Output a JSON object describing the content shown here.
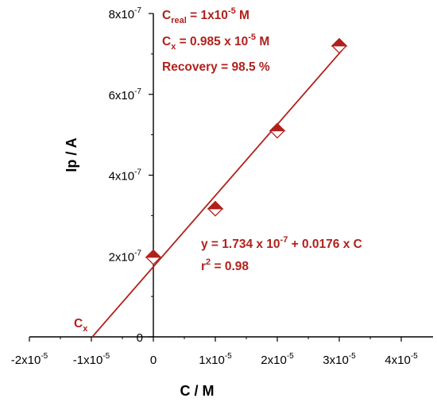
{
  "chart_data": {
    "type": "scatter",
    "xlabel": "C / M",
    "ylabel": "Ip / A",
    "xlim": [
      -2e-05,
      4e-05
    ],
    "ylim": [
      0,
      8e-07
    ],
    "x_ticks": [
      {
        "value": -2e-05,
        "mantissa": "-2x10",
        "exp": "-5"
      },
      {
        "value": -1e-05,
        "mantissa": "-1x10",
        "exp": "-5"
      },
      {
        "value": 0,
        "mantissa": "0",
        "exp": ""
      },
      {
        "value": 1e-05,
        "mantissa": "1x10",
        "exp": "-5"
      },
      {
        "value": 2e-05,
        "mantissa": "2x10",
        "exp": "-5"
      },
      {
        "value": 3e-05,
        "mantissa": "3x10",
        "exp": "-5"
      },
      {
        "value": 4e-05,
        "mantissa": "4x10",
        "exp": "-5"
      }
    ],
    "y_ticks": [
      {
        "value": 0,
        "mantissa": "0",
        "exp": ""
      },
      {
        "value": 2e-07,
        "mantissa": "2x10",
        "exp": "-7"
      },
      {
        "value": 4e-07,
        "mantissa": "4x10",
        "exp": "-7"
      },
      {
        "value": 6e-07,
        "mantissa": "6x10",
        "exp": "-7"
      },
      {
        "value": 8e-07,
        "mantissa": "8x10",
        "exp": "-7"
      }
    ],
    "points": [
      {
        "x": 0,
        "y": 1.97e-07
      },
      {
        "x": 1e-05,
        "y": 3.17e-07
      },
      {
        "x": 2e-05,
        "y": 5.1e-07
      },
      {
        "x": 3e-05,
        "y": 7.2e-07
      }
    ],
    "fit_line": {
      "x_start": -9.85e-06,
      "x_end": 3.05e-05,
      "intercept": 1.734e-07,
      "slope": 0.0176
    },
    "annotations": {
      "c_real": {
        "prefix": "C",
        "sub": "real",
        "value": " = 1x10",
        "exp": "-5",
        "unit": " M"
      },
      "c_x": {
        "prefix": "C",
        "sub": "x",
        "value": " = 0.985 x 10",
        "exp": "-5",
        "unit": " M"
      },
      "recovery": "Recovery = 98.5 %",
      "equation": {
        "start": "y = 1.734 x 10",
        "exp": "-7",
        "end": " + 0.0176 x C"
      },
      "r2": {
        "base": "r",
        "exp": "2",
        "value": " = 0.98"
      },
      "cx_marker": {
        "prefix": "C",
        "sub": "x"
      }
    },
    "colors": {
      "series": "#b0211c",
      "axis": "#000000"
    },
    "grid": false,
    "legend": "none"
  }
}
